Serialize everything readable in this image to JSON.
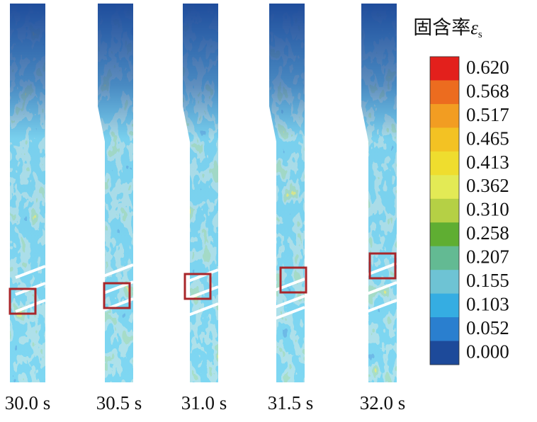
{
  "legend": {
    "title": "固含率",
    "symbol": "ε",
    "subscript": "s",
    "levels": [
      {
        "label": "0.620",
        "color": "#e3201c"
      },
      {
        "label": "0.568",
        "color": "#ec6c1f"
      },
      {
        "label": "0.517",
        "color": "#f29d22"
      },
      {
        "label": "0.465",
        "color": "#f3c223"
      },
      {
        "label": "0.413",
        "color": "#efdd2e"
      },
      {
        "label": "0.362",
        "color": "#e3ea55"
      },
      {
        "label": "0.310",
        "color": "#b5d045"
      },
      {
        "label": "0.258",
        "color": "#5fae32"
      },
      {
        "label": "0.207",
        "color": "#63ba93"
      },
      {
        "label": "0.155",
        "color": "#6ec3d4"
      },
      {
        "label": "0.103",
        "color": "#35ade2"
      },
      {
        "label": "0.052",
        "color": "#2a7fcf"
      },
      {
        "label": "0.000",
        "color": "#1d4a9a"
      }
    ]
  },
  "panels": [
    {
      "label": "30.0 s"
    },
    {
      "label": "30.5 s"
    },
    {
      "label": "31.0 s"
    },
    {
      "label": "31.5 s"
    },
    {
      "label": "32.0 s"
    }
  ]
}
